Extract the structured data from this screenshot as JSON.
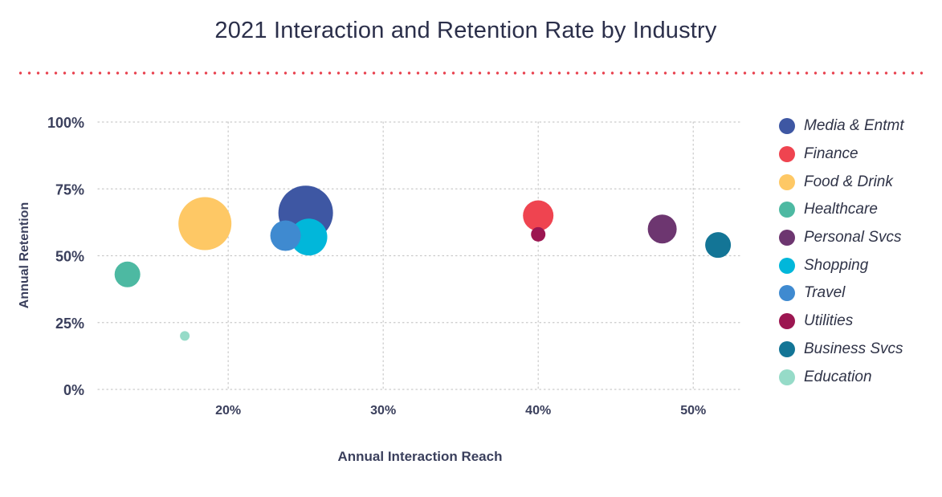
{
  "chart_data": {
    "type": "scatter",
    "title": "2021 Interaction and Retention Rate by Industry",
    "xlabel": "Annual Interaction Reach",
    "ylabel": "Annual Retention",
    "xlim": [
      11.6,
      53.2
    ],
    "ylim": [
      0,
      100
    ],
    "xticks": [
      20,
      30,
      40,
      50
    ],
    "xtick_labels": [
      "20%",
      "30%",
      "40%",
      "50%"
    ],
    "yticks": [
      0,
      25,
      50,
      75,
      100
    ],
    "ytick_labels": [
      "0%",
      "25%",
      "50%",
      "75%",
      "100%"
    ],
    "grid": true,
    "legend_position": "right",
    "series": [
      {
        "name": "Media & Entmt",
        "color": "#3e57a3",
        "x": [
          25.0
        ],
        "y": [
          66
        ],
        "size": [
          34
        ]
      },
      {
        "name": "Finance",
        "color": "#ef4450",
        "x": [
          40.0
        ],
        "y": [
          65
        ],
        "size": [
          19
        ]
      },
      {
        "name": "Food & Drink",
        "color": "#fec865",
        "x": [
          18.5
        ],
        "y": [
          62
        ],
        "size": [
          33
        ]
      },
      {
        "name": "Healthcare",
        "color": "#4db9a2",
        "x": [
          13.5
        ],
        "y": [
          43
        ],
        "size": [
          16
        ]
      },
      {
        "name": "Personal Svcs",
        "color": "#6d3670",
        "x": [
          48.0
        ],
        "y": [
          60
        ],
        "size": [
          18
        ]
      },
      {
        "name": "Shopping",
        "color": "#01b7da",
        "x": [
          25.2
        ],
        "y": [
          57
        ],
        "size": [
          23
        ]
      },
      {
        "name": "Travel",
        "color": "#3f8ad0",
        "x": [
          23.7
        ],
        "y": [
          57.5
        ],
        "size": [
          19
        ]
      },
      {
        "name": "Utilities",
        "color": "#9c1651",
        "x": [
          40.0
        ],
        "y": [
          58
        ],
        "size": [
          9
        ]
      },
      {
        "name": "Business Svcs",
        "color": "#137596",
        "x": [
          51.6
        ],
        "y": [
          54
        ],
        "size": [
          16
        ]
      },
      {
        "name": "Education",
        "color": "#96dbc8",
        "x": [
          17.2
        ],
        "y": [
          20
        ],
        "size": [
          6
        ]
      }
    ]
  }
}
